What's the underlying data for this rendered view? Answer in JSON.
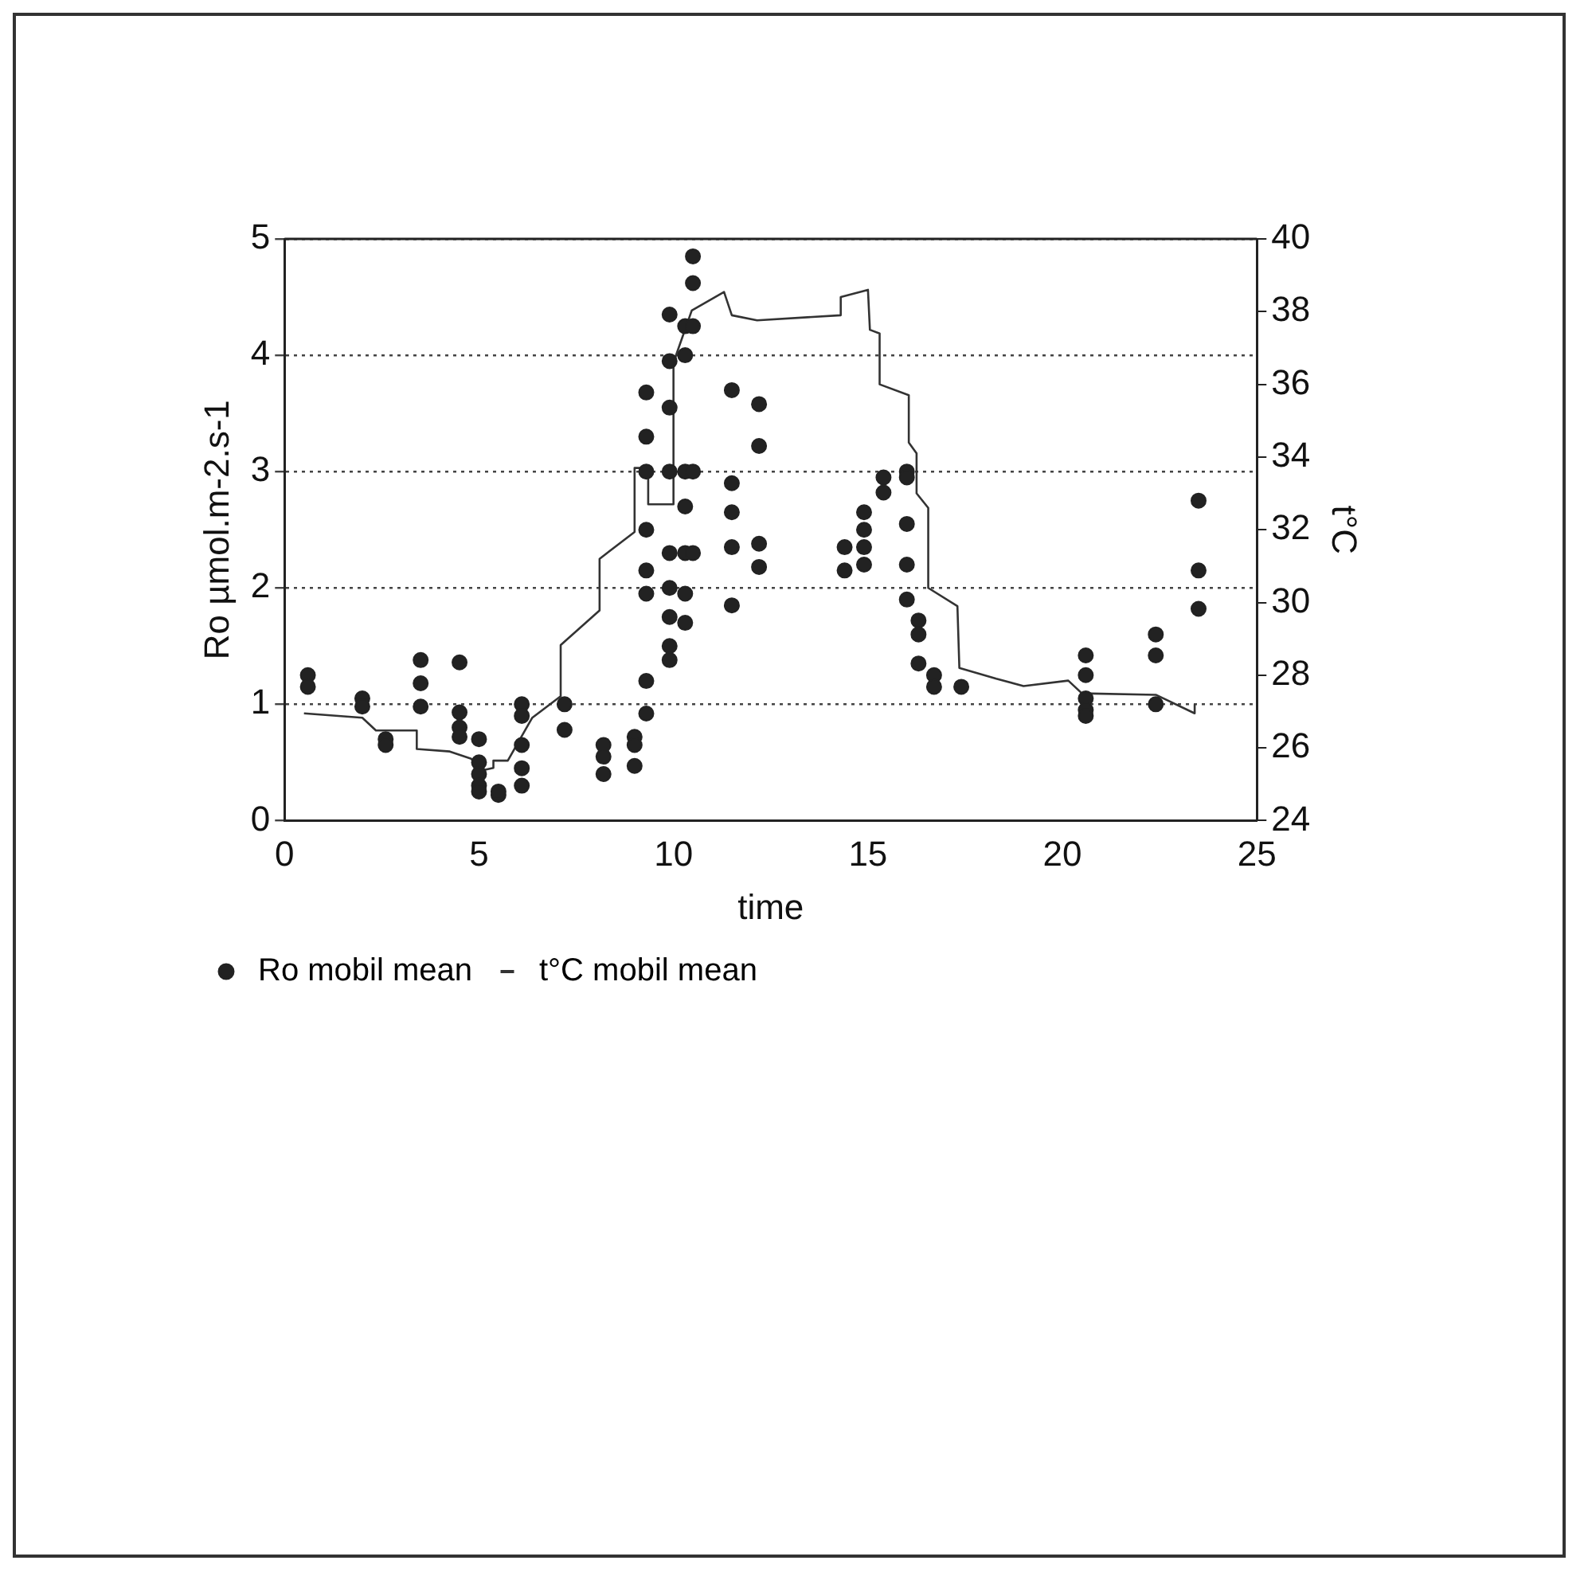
{
  "chart_data": {
    "type": "scatter",
    "xlabel": "time",
    "ylabel": "Ro µmol.m-2.s-1",
    "y2label": "t°C",
    "xlim": [
      0,
      25
    ],
    "xticks": [
      0,
      5,
      10,
      15,
      20,
      25
    ],
    "ylim": [
      0,
      5
    ],
    "yticks": [
      0,
      1,
      2,
      3,
      4,
      5
    ],
    "y2lim": [
      24,
      40
    ],
    "y2ticks": [
      24,
      26,
      28,
      30,
      32,
      34,
      36,
      38,
      40
    ],
    "grid": "y",
    "legend": "bottom",
    "series": [
      {
        "name": "Ro mobil mean",
        "marker": "circle",
        "color": "#222222",
        "x": [
          0.6,
          0.6,
          2.0,
          2.0,
          2.6,
          2.6,
          3.5,
          3.5,
          3.5,
          4.5,
          4.5,
          4.5,
          4.5,
          5.0,
          5.0,
          5.0,
          5.0,
          5.0,
          5.5,
          5.5,
          6.1,
          6.1,
          6.1,
          6.1,
          6.1,
          7.2,
          7.2,
          8.2,
          8.2,
          8.2,
          9.0,
          9.0,
          9.0,
          9.3,
          9.3,
          9.3,
          9.3,
          9.3,
          9.3,
          9.3,
          9.3,
          9.9,
          9.9,
          9.9,
          9.9,
          9.9,
          9.9,
          9.9,
          9.9,
          9.9,
          10.3,
          10.3,
          10.3,
          10.3,
          10.3,
          10.3,
          10.3,
          10.5,
          10.5,
          10.5,
          10.5,
          10.5,
          11.5,
          11.5,
          11.5,
          11.5,
          11.5,
          12.2,
          12.2,
          12.2,
          12.2,
          14.4,
          14.4,
          14.9,
          14.9,
          14.9,
          14.9,
          15.4,
          15.4,
          16.0,
          16.0,
          16.0,
          16.0,
          16.0,
          16.3,
          16.3,
          16.3,
          16.7,
          16.7,
          17.4,
          20.6,
          20.6,
          20.6,
          20.6,
          20.6,
          22.4,
          22.4,
          22.4,
          23.5,
          23.5,
          23.5
        ],
        "values": [
          1.25,
          1.15,
          1.05,
          0.98,
          0.7,
          0.65,
          1.38,
          1.18,
          0.98,
          1.36,
          0.93,
          0.8,
          0.72,
          0.7,
          0.5,
          0.4,
          0.3,
          0.25,
          0.22,
          0.25,
          1.0,
          0.9,
          0.65,
          0.45,
          0.3,
          1.0,
          0.78,
          0.65,
          0.55,
          0.4,
          0.72,
          0.65,
          0.47,
          3.68,
          3.3,
          3.0,
          2.5,
          2.15,
          1.95,
          1.2,
          0.92,
          4.35,
          3.95,
          3.55,
          3.0,
          2.3,
          2.0,
          1.75,
          1.5,
          1.38,
          4.25,
          4.0,
          3.0,
          2.7,
          2.3,
          1.95,
          1.7,
          4.85,
          4.62,
          4.25,
          3.0,
          2.3,
          3.7,
          2.9,
          2.65,
          2.35,
          1.85,
          3.58,
          3.22,
          2.38,
          2.18,
          2.35,
          2.15,
          2.65,
          2.5,
          2.35,
          2.2,
          2.95,
          2.82,
          3.0,
          2.95,
          2.55,
          2.2,
          1.9,
          1.72,
          1.6,
          1.35,
          1.25,
          1.15,
          1.15,
          1.42,
          1.25,
          1.05,
          0.95,
          0.9,
          1.6,
          1.42,
          1.0,
          2.75,
          2.15,
          1.82
        ]
      },
      {
        "name": "t°C mobil mean",
        "type": "line",
        "axis": "y2",
        "marker": "none",
        "line_style": "solid",
        "color": "#333333",
        "x": [
          0.5,
          2.0,
          2.35,
          3.4,
          3.4,
          4.25,
          4.8,
          5.07,
          5.37,
          5.37,
          5.74,
          6.37,
          7.1,
          7.1,
          8.1,
          8.1,
          9.0,
          9.0,
          9.35,
          9.35,
          10.0,
          10.0,
          10.47,
          11.3,
          11.5,
          12.15,
          14.3,
          14.3,
          15.0,
          15.05,
          15.3,
          15.3,
          16.05,
          16.05,
          16.25,
          16.25,
          16.55,
          16.55,
          17.3,
          17.35,
          18.3,
          19.0,
          20.15,
          20.5,
          22.4,
          23.4,
          23.4
        ],
        "values": [
          26.95,
          26.83,
          26.48,
          26.48,
          25.97,
          25.9,
          25.7,
          25.38,
          25.45,
          25.65,
          25.65,
          26.83,
          27.42,
          28.83,
          29.78,
          31.2,
          31.94,
          33.7,
          33.7,
          32.7,
          32.7,
          36.6,
          38.03,
          38.54,
          37.9,
          37.76,
          37.9,
          38.4,
          38.6,
          37.5,
          37.4,
          36.0,
          35.7,
          34.4,
          34.1,
          33.0,
          32.6,
          30.4,
          29.9,
          28.2,
          27.9,
          27.7,
          27.85,
          27.5,
          27.46,
          26.95,
          27.2
        ]
      }
    ]
  }
}
